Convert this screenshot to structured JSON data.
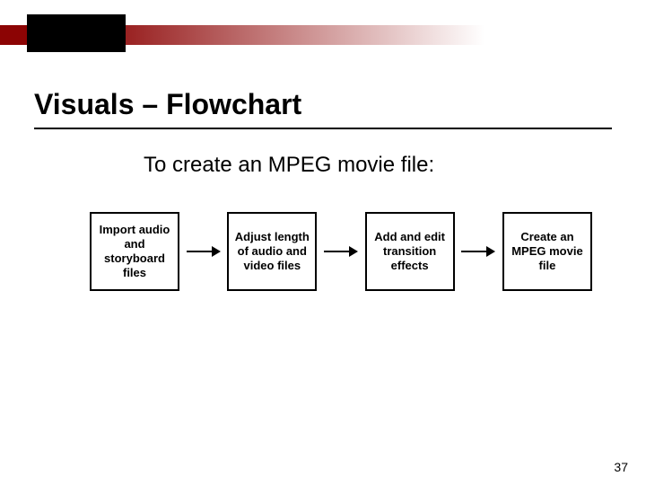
{
  "header": {
    "gradient_start": "#8c0404",
    "gradient_end": "#ffffff",
    "block_color": "#000000"
  },
  "title": "Visuals – Flowchart",
  "title_fontsize": 32,
  "title_color": "#000000",
  "underline_color": "#000000",
  "subtitle": "To create an MPEG movie file:",
  "subtitle_fontsize": 24,
  "subtitle_color": "#000000",
  "flowchart": {
    "type": "flowchart",
    "nodes": [
      {
        "label": "Import audio and storyboard files"
      },
      {
        "label": "Adjust length of audio and video files"
      },
      {
        "label": "Add and edit transition effects"
      },
      {
        "label": "Create an MPEG movie file"
      }
    ],
    "node_style": {
      "border_color": "#000000",
      "border_width": 2,
      "width": 100,
      "height": 88,
      "font_size": 13,
      "font_weight": "bold",
      "text_color": "#000000",
      "background": "#ffffff"
    },
    "arrow_style": {
      "line_color": "#000000",
      "line_width": 2,
      "line_length": 28,
      "head_size": 6
    }
  },
  "page_number": "37",
  "page_number_fontsize": 14,
  "background_color": "#ffffff"
}
